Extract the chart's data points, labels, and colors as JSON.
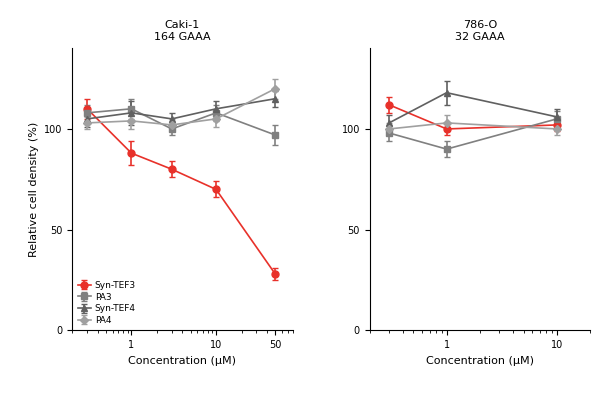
{
  "title_left": "Caki-1\n164 GAAA",
  "title_right": "786-O\n32 GAAA",
  "xlabel": "Concentration (μM)",
  "ylabel": "Relative cell density (%)",
  "caki1": {
    "x": [
      0.3,
      1,
      3,
      10,
      50
    ],
    "syn_tef3": [
      110,
      88,
      80,
      70,
      28
    ],
    "syn_tef3_err": [
      5,
      6,
      4,
      4,
      3
    ],
    "pa3": [
      108,
      110,
      100,
      108,
      97
    ],
    "pa3_err": [
      4,
      5,
      3,
      4,
      5
    ],
    "syn_tef4": [
      105,
      108,
      105,
      110,
      115
    ],
    "syn_tef4_err": [
      4,
      6,
      3,
      4,
      4
    ],
    "pa4": [
      103,
      104,
      102,
      105,
      120
    ],
    "pa4_err": [
      3,
      4,
      3,
      4,
      5
    ]
  },
  "o786": {
    "x": [
      0.3,
      1,
      10
    ],
    "syn_tef3": [
      112,
      100,
      102
    ],
    "syn_tef3_err": [
      4,
      3,
      3
    ],
    "pa3": [
      98,
      90,
      105
    ],
    "pa3_err": [
      4,
      4,
      4
    ],
    "syn_tef4": [
      103,
      118,
      106
    ],
    "syn_tef4_err": [
      4,
      6,
      4
    ],
    "pa4": [
      100,
      103,
      100
    ],
    "pa4_err": [
      3,
      4,
      3
    ]
  },
  "colors": {
    "syn_tef3": "#e8312a",
    "pa3": "#808080",
    "syn_tef4": "#606060",
    "pa4": "#a0a0a0"
  },
  "legend_labels": [
    "Syn-TEF3",
    "PA3",
    "Syn-TEF4",
    "PA4"
  ],
  "ylim": [
    0,
    140
  ],
  "yticks": [
    0,
    50,
    100
  ],
  "background": "#ffffff"
}
